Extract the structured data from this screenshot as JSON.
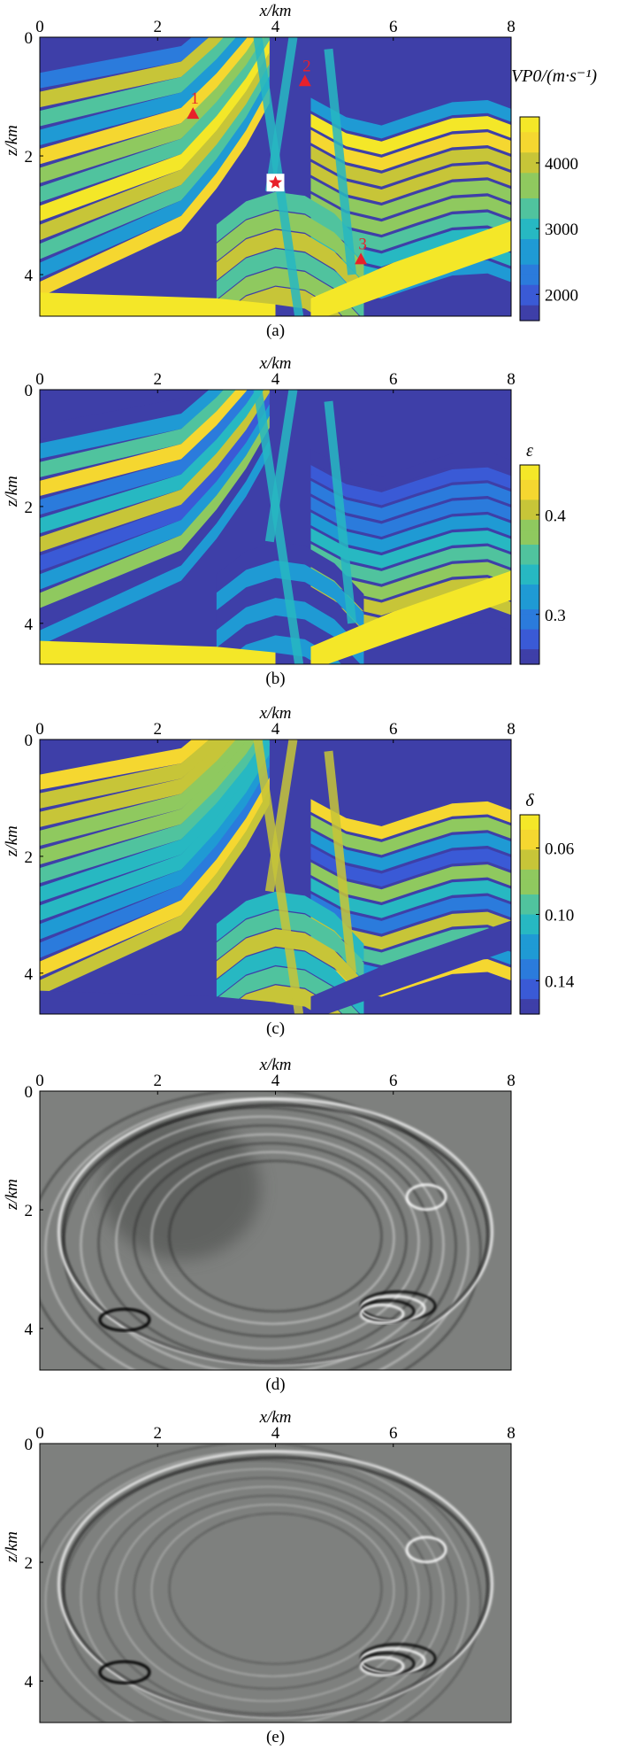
{
  "figure": {
    "colors": {
      "parula_dark": "#3e3fa8",
      "parula_blue": "#2b7bdc",
      "parula_cyan": "#27b8c2",
      "parula_green": "#7cc95a",
      "parula_yellow": "#f4e728",
      "parula_orange": "#f5b83a",
      "marker_red": "#e8202a",
      "gray_background": "#7e807e"
    },
    "panels": [
      {
        "id": "a",
        "caption": "(a)",
        "type": "colormap",
        "xlabel": "x/km",
        "ylabel": "z/km",
        "xticks": [
          "0",
          "2",
          "4",
          "6",
          "8"
        ],
        "yticks": [
          "0",
          "2",
          "4"
        ],
        "colorbar": {
          "label": "VP0/(m·s⁻¹)",
          "ticks": [
            "4000",
            "3000",
            "2000"
          ],
          "tick_values": [
            4000,
            3000,
            2000
          ],
          "range": [
            1600,
            4700
          ]
        },
        "receivers": [
          {
            "label": "1",
            "x": 2.6,
            "z": 1.3
          },
          {
            "label": "2",
            "x": 4.5,
            "z": 0.75
          },
          {
            "label": "3",
            "x": 5.45,
            "z": 3.75
          }
        ],
        "source": {
          "x": 4.0,
          "z": 2.45
        }
      },
      {
        "id": "b",
        "caption": "(b)",
        "type": "colormap",
        "xlabel": "x/km",
        "ylabel": "z/km",
        "xticks": [
          "0",
          "2",
          "4",
          "6",
          "8"
        ],
        "yticks": [
          "0",
          "2",
          "4"
        ],
        "colorbar": {
          "label": "ε",
          "ticks": [
            "0.4",
            "0.3"
          ],
          "tick_values": [
            0.4,
            0.3
          ],
          "range": [
            0.25,
            0.45
          ]
        }
      },
      {
        "id": "c",
        "caption": "(c)",
        "type": "colormap",
        "xlabel": "x/km",
        "ylabel": "z/km",
        "xticks": [
          "0",
          "2",
          "4",
          "6",
          "8"
        ],
        "yticks": [
          "0",
          "2",
          "4"
        ],
        "colorbar": {
          "label": "δ",
          "ticks": [
            "0.06",
            "0.10",
            "0.14"
          ],
          "tick_values": [
            0.06,
            0.1,
            0.14
          ],
          "range": [
            0.04,
            0.16
          ],
          "reversed": true
        }
      },
      {
        "id": "d",
        "caption": "(d)",
        "type": "wavefield",
        "xlabel": "x/km",
        "ylabel": "z/km",
        "xticks": [
          "0",
          "2",
          "4",
          "6",
          "8"
        ],
        "yticks": [
          "0",
          "2",
          "4"
        ]
      },
      {
        "id": "e",
        "caption": "(e)",
        "type": "wavefield",
        "xlabel": "x/km",
        "ylabel": "z/km",
        "xticks": [
          "0",
          "2",
          "4",
          "6",
          "8"
        ],
        "yticks": [
          "0",
          "2",
          "4"
        ]
      }
    ]
  }
}
